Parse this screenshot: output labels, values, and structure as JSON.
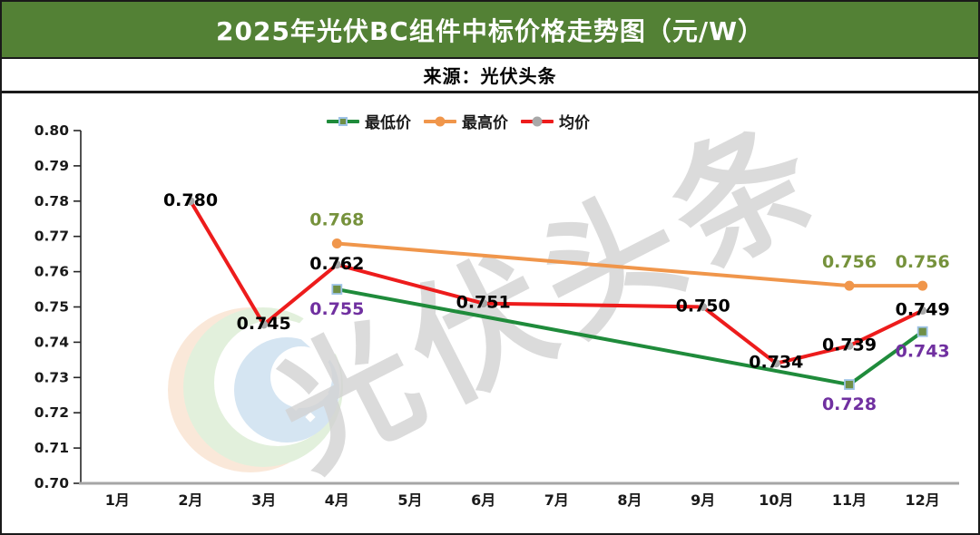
{
  "header": {
    "title": "2025年光伏BC组件中标价格走势图（元/W）",
    "source": "来源：光伏头条",
    "bg_color": "#538135",
    "title_color": "#ffffff"
  },
  "chart_data": {
    "type": "line",
    "title": "2025年光伏BC组件中标价格走势图（元/W）",
    "xlabel": "",
    "ylabel": "",
    "categories": [
      "1月",
      "2月",
      "3月",
      "4月",
      "5月",
      "6月",
      "7月",
      "8月",
      "9月",
      "10月",
      "11月",
      "12月"
    ],
    "ylim": [
      0.7,
      0.8
    ],
    "ytick_step": 0.01,
    "grid": false,
    "legend_position": "top-center",
    "axis_color": "#262626",
    "baseline_color": "#A6A6A6",
    "watermark_text": "光伏头条",
    "watermark_color": "#D3D3D3",
    "series": [
      {
        "name": "最低价",
        "color": "#1F8B3B",
        "marker": "square",
        "marker_fill": "#6F8F46",
        "marker_border": "#9DC3E6",
        "label_color": "#7030A0",
        "label_pos": "below",
        "points": [
          {
            "month": "4月",
            "value": 0.755
          },
          {
            "month": "11月",
            "value": 0.728
          },
          {
            "month": "12月",
            "value": 0.743
          }
        ]
      },
      {
        "name": "最高价",
        "color": "#F0964B",
        "marker": "circle",
        "marker_fill": "#F0964B",
        "marker_border": "#F0964B",
        "label_color": "#76923C",
        "label_pos": "above",
        "points": [
          {
            "month": "4月",
            "value": 0.768
          },
          {
            "month": "11月",
            "value": 0.756
          },
          {
            "month": "12月",
            "value": 0.756
          }
        ]
      },
      {
        "name": "均价",
        "color": "#ED1C1C",
        "marker": "circle",
        "marker_fill": "#A8A8A8",
        "marker_border": "#A8A8A8",
        "label_color": "#000000",
        "label_pos": "on",
        "points": [
          {
            "month": "2月",
            "value": 0.78
          },
          {
            "month": "3月",
            "value": 0.745
          },
          {
            "month": "4月",
            "value": 0.762
          },
          {
            "month": "6月",
            "value": 0.751
          },
          {
            "month": "9月",
            "value": 0.75
          },
          {
            "month": "10月",
            "value": 0.734
          },
          {
            "month": "11月",
            "value": 0.739
          },
          {
            "month": "12月",
            "value": 0.749
          }
        ]
      }
    ]
  }
}
